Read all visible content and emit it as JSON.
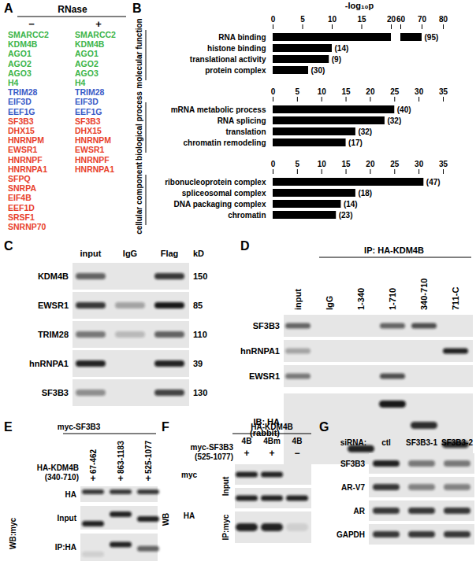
{
  "chart_data": [
    {
      "type": "bar",
      "orientation": "horizontal",
      "title": "molecular function",
      "xlabel": "-log₁₀p",
      "categories": [
        "RNA binding",
        "histone binding",
        "translational activity",
        "protein complex"
      ],
      "values": [
        70,
        10,
        9.5,
        6
      ],
      "annotations": [
        "(95)",
        "(14)",
        "(9)",
        "(30)"
      ],
      "xlim": [
        0,
        80
      ],
      "xticks": [
        0,
        5,
        10,
        15,
        20,
        60,
        70,
        80
      ],
      "color": "#000000"
    },
    {
      "type": "bar",
      "orientation": "horizontal",
      "title": "biological process",
      "categories": [
        "mRNA metabolic process",
        "RNA splicing",
        "translation",
        "chromatin remodeling"
      ],
      "values": [
        25,
        23,
        17,
        15
      ],
      "annotations": [
        "(40)",
        "(32)",
        "(32)",
        "(17)"
      ],
      "xlim": [
        0,
        35
      ],
      "xticks": [
        0,
        5,
        10,
        15,
        20,
        25,
        30,
        35
      ],
      "color": "#000000"
    },
    {
      "type": "bar",
      "orientation": "horizontal",
      "title": "cellular component",
      "categories": [
        "ribonucleoprotein complex",
        "spliceosomal complex",
        "DNA packaging complex",
        "chromatin"
      ],
      "values": [
        31,
        17,
        14,
        13
      ],
      "annotations": [
        "(47)",
        "(18)",
        "(14)",
        "(23)"
      ],
      "xlim": [
        0,
        35
      ],
      "xticks": [
        0,
        5,
        10,
        15,
        20,
        25,
        30,
        35
      ],
      "color": "#000000"
    }
  ],
  "figure": {
    "panels": {
      "A": {
        "letter": "A",
        "header": "RNase",
        "columns": [
          {
            "sign": "−",
            "groups": [
              {
                "color": "#3db54a",
                "items": [
                  "SMARCC2",
                  "KDM4B",
                  "AGO1",
                  "AGO2",
                  "AGO3",
                  "H4"
                ]
              },
              {
                "color": "#3a5cc7",
                "items": [
                  "TRIM28",
                  "EIF3D",
                  "EEF1G"
                ]
              },
              {
                "color": "#e8412c",
                "items": [
                  "SF3B3",
                  "DHX15",
                  "HNRNPM",
                  "EWSR1",
                  "HNRNPF",
                  "HNRNPA1",
                  "SFPQ",
                  "SNRPA",
                  "EIF4B",
                  "EEF1D",
                  "SRSF1",
                  "SNRNP70"
                ]
              }
            ]
          },
          {
            "sign": "+",
            "groups": [
              {
                "color": "#3db54a",
                "items": [
                  "SMARCC2",
                  "KDM4B",
                  "AGO1",
                  "AGO2",
                  "AGO3",
                  "H4"
                ]
              },
              {
                "color": "#3a5cc7",
                "items": [
                  "TRIM28",
                  "EIF3D",
                  "EEF1G"
                ]
              },
              {
                "color": "#e8412c",
                "items": [
                  "SF3B3",
                  "DHX15",
                  "HNRNPM",
                  "EWSR1",
                  "HNRNPF",
                  "HNRNPA1"
                ]
              }
            ]
          }
        ]
      },
      "B": {
        "letter": "B"
      },
      "C": {
        "letter": "C",
        "lanes": [
          "input",
          "IgG",
          "Flag"
        ],
        "unit": "kD",
        "rows": [
          {
            "label": "KDM4B",
            "kd": 150
          },
          {
            "label": "EWSR1",
            "kd": 85
          },
          {
            "label": "TRIM28",
            "kd": 110
          },
          {
            "label": "hnRNPA1",
            "kd": 39
          },
          {
            "label": "SF3B3",
            "kd": 130
          }
        ]
      },
      "D": {
        "letter": "D",
        "ip_header": "IP: HA-KDM4B",
        "lanes": [
          "input",
          "IgG",
          "1-340",
          "1-710",
          "340-710",
          "711-C"
        ],
        "rows": [
          "SF3B3",
          "hnRNPA1",
          "EWSR1"
        ],
        "ib_label": [
          "IB: HA",
          "(rabbit)"
        ]
      },
      "E": {
        "letter": "E",
        "top_label": "myc-SF3B3",
        "lanes": [
          "67-462",
          "863-1183",
          "525-1077"
        ],
        "treatment": {
          "label": [
            "HA-KDM4B",
            "(340-710)"
          ],
          "signs": [
            "+",
            "+",
            "+"
          ]
        },
        "rows": [
          "HA"
        ],
        "wb_label": "WB:myc",
        "wb_rows": [
          "Input",
          "IP:HA"
        ]
      },
      "F": {
        "letter": "F",
        "header": "HA-KDM4B",
        "lanes": [
          "4B",
          "4Bm",
          "4B"
        ],
        "treatment": {
          "label": [
            "myc-SF3B3",
            "(525-1077)"
          ],
          "signs": [
            "+",
            "+",
            "−"
          ]
        },
        "wb_label": "WB",
        "rows": [
          {
            "probe": "myc",
            "sample": "Input"
          },
          {
            "probe": "HA",
            "sample": "Input"
          },
          {
            "probe": "HA",
            "sample": "IP:myc"
          }
        ]
      },
      "G": {
        "letter": "G",
        "lanes_label": "siRNA:",
        "lanes": [
          "ctl",
          "SF3B3-1",
          "SF3B3-2"
        ],
        "rows": [
          "SF3B3",
          "AR-V7",
          "AR",
          "GAPDH"
        ]
      }
    }
  }
}
